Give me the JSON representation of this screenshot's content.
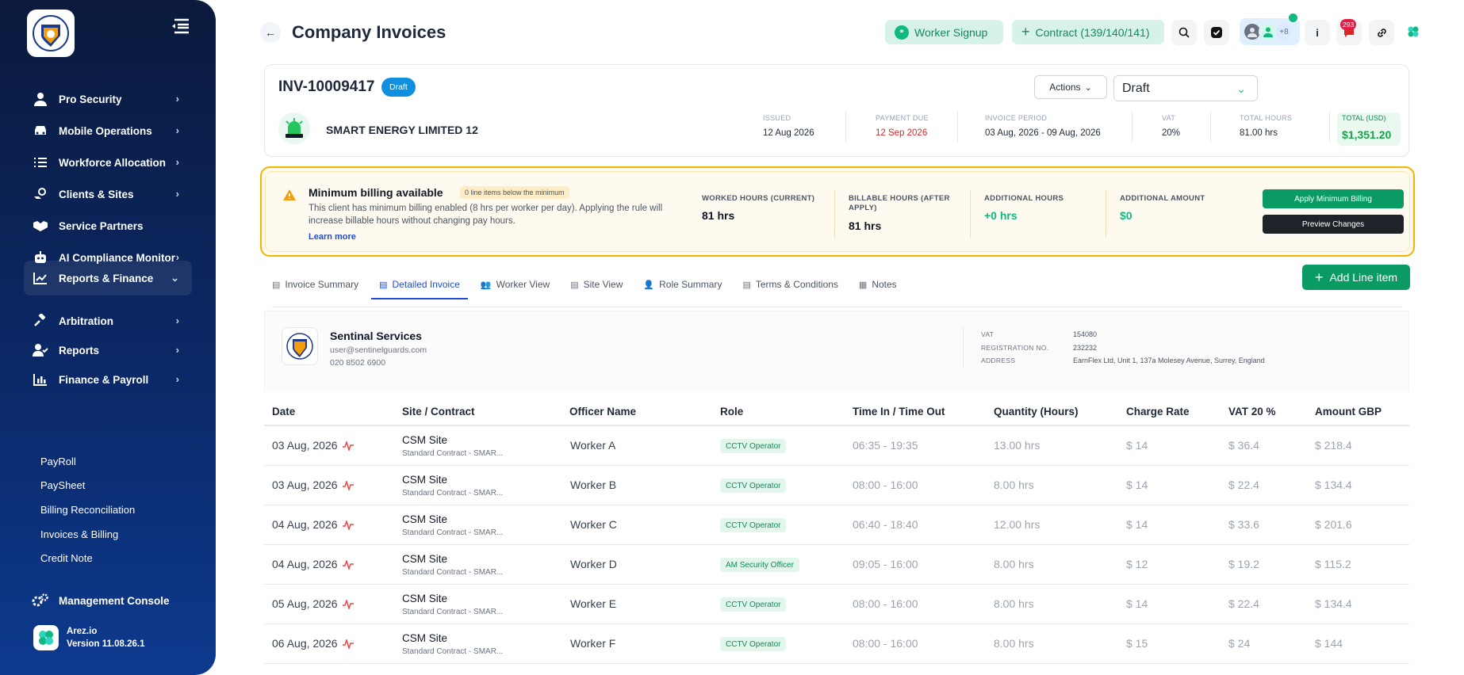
{
  "sidebar": {
    "items": [
      {
        "label": "Pro Security",
        "icon": "user-icon",
        "chevron": true
      },
      {
        "label": "Mobile Operations",
        "icon": "car-icon",
        "chevron": true
      },
      {
        "label": "Workforce Allocation",
        "icon": "list-check-icon",
        "chevron": true
      },
      {
        "label": "Clients & Sites",
        "icon": "hand-coin-icon",
        "chevron": true
      },
      {
        "label": "Service Partners",
        "icon": "handshake-icon",
        "chevron": false
      },
      {
        "label": "AI Compliance Monitor",
        "icon": "robot-icon",
        "chevron": true
      },
      {
        "label": "Reports & Finance",
        "icon": "chart-line-icon",
        "chevron": true,
        "expanded": true
      },
      {
        "label": "Arbitration",
        "icon": "gavel-icon",
        "chevron": true
      },
      {
        "label": "Reports",
        "icon": "user-check-icon",
        "chevron": true
      },
      {
        "label": "Finance & Payroll",
        "icon": "bar-chart-icon",
        "chevron": true
      }
    ],
    "sub_items": [
      "PayRoll",
      "PaySheet",
      "Billing Reconciliation",
      "Invoices & Billing",
      "Credit Note"
    ],
    "management": "Management Console",
    "app_name": "Arez.io",
    "version": "Version 11.08.26.1"
  },
  "header": {
    "title": "Company Invoices",
    "worker_signup": "Worker Signup",
    "contract": "Contract (139/140/141)",
    "avatar_more": "+8",
    "notifications": "293"
  },
  "invoice": {
    "number": "INV-10009417",
    "status_badge": "Draft",
    "company": "SMART ENERGY LIMITED 12",
    "actions_label": "Actions",
    "status_value": "Draft",
    "meta": [
      {
        "label": "ISSUED",
        "value": "12 Aug 2026"
      },
      {
        "label": "PAYMENT DUE",
        "value": "12 Sep 2026"
      },
      {
        "label": "INVOICE PERIOD",
        "value": "03 Aug, 2026 - 09 Aug, 2026"
      },
      {
        "label": "VAT",
        "value": "20%"
      },
      {
        "label": "TOTAL HOURS",
        "value": "81.00 hrs"
      }
    ],
    "total_label": "TOTAL (USD)",
    "total_value": "$1,351.20"
  },
  "banner": {
    "title": "Minimum billing available",
    "badge": "0 line items below the minimum",
    "description": "This client has minimum billing enabled (8 hrs per worker per day). Applying the rule will increase billable hours without changing pay hours.",
    "learn_more": "Learn more",
    "stats": [
      {
        "label": "WORKED HOURS (CURRENT)",
        "value": "81 hrs"
      },
      {
        "label": "BILLABLE HOURS (AFTER APPLY)",
        "value": "81 hrs"
      },
      {
        "label": "ADDITIONAL HOURS",
        "value": "+0 hrs"
      },
      {
        "label": "ADDITIONAL AMOUNT",
        "value": "$0"
      }
    ],
    "apply": "Apply Minimum Billing",
    "preview": "Preview Changes"
  },
  "tabs": [
    "Invoice Summary",
    "Detailed Invoice",
    "Worker View",
    "Site View",
    "Role Summary",
    "Terms & Conditions",
    "Notes"
  ],
  "add_line_item": "Add Line item",
  "provider": {
    "name": "Sentinal Services",
    "email": "user@sentinelguards.com",
    "phone": "020 8502 6900",
    "vat_label": "VAT",
    "vat": "154080",
    "reg_label": "REGISTRATION NO.",
    "reg": "232232",
    "address_label": "ADDRESS",
    "address": "EarnFlex Ltd, Unit 1, 137a Molesey Avenue, Surrey, England"
  },
  "table": {
    "headers": [
      "Date",
      "Site / Contract",
      "Officer Name",
      "Role",
      "Time In / Time Out",
      "Quantity (Hours)",
      "Charge Rate",
      "VAT 20 %",
      "Amount GBP"
    ],
    "rows": [
      {
        "date": "03 Aug, 2026",
        "site": "CSM Site",
        "contract": "Standard Contract - SMAR...",
        "officer": "Worker A",
        "role": "CCTV Operator",
        "time": "06:35 - 19:35",
        "qty": "13.00 hrs",
        "rate": "$ 14",
        "vat": "$ 36.4",
        "amount": "$ 218.4"
      },
      {
        "date": "03 Aug, 2026",
        "site": "CSM Site",
        "contract": "Standard Contract - SMAR...",
        "officer": "Worker B",
        "role": "CCTV Operator",
        "time": "08:00 - 16:00",
        "qty": "8.00 hrs",
        "rate": "$ 14",
        "vat": "$ 22.4",
        "amount": "$ 134.4"
      },
      {
        "date": "04 Aug, 2026",
        "site": "CSM Site",
        "contract": "Standard Contract - SMAR...",
        "officer": "Worker C",
        "role": "CCTV Operator",
        "time": "06:40 - 18:40",
        "qty": "12.00 hrs",
        "rate": "$ 14",
        "vat": "$ 33.6",
        "amount": "$ 201.6"
      },
      {
        "date": "04 Aug, 2026",
        "site": "CSM Site",
        "contract": "Standard Contract - SMAR...",
        "officer": "Worker D",
        "role": "AM Security Officer",
        "time": "09:05 - 16:00",
        "qty": "8.00 hrs",
        "rate": "$ 12",
        "vat": "$ 19.2",
        "amount": "$ 115.2"
      },
      {
        "date": "05 Aug, 2026",
        "site": "CSM Site",
        "contract": "Standard Contract - SMAR...",
        "officer": "Worker E",
        "role": "CCTV Operator",
        "time": "08:00 - 16:00",
        "qty": "8.00 hrs",
        "rate": "$ 14",
        "vat": "$ 22.4",
        "amount": "$ 134.4"
      },
      {
        "date": "06 Aug, 2026",
        "site": "CSM Site",
        "contract": "Standard Contract - SMAR...",
        "officer": "Worker F",
        "role": "CCTV Operator",
        "time": "08:00 - 16:00",
        "qty": "8.00 hrs",
        "rate": "$ 15",
        "vat": "$ 24",
        "amount": "$ 144"
      }
    ]
  },
  "colors": {
    "accent_green": "#0a9b64",
    "sidebar": "#0b2a6b",
    "draft_blue": "#0e8fe0",
    "warning": "#f4b400",
    "due_red": "#dc2626"
  }
}
